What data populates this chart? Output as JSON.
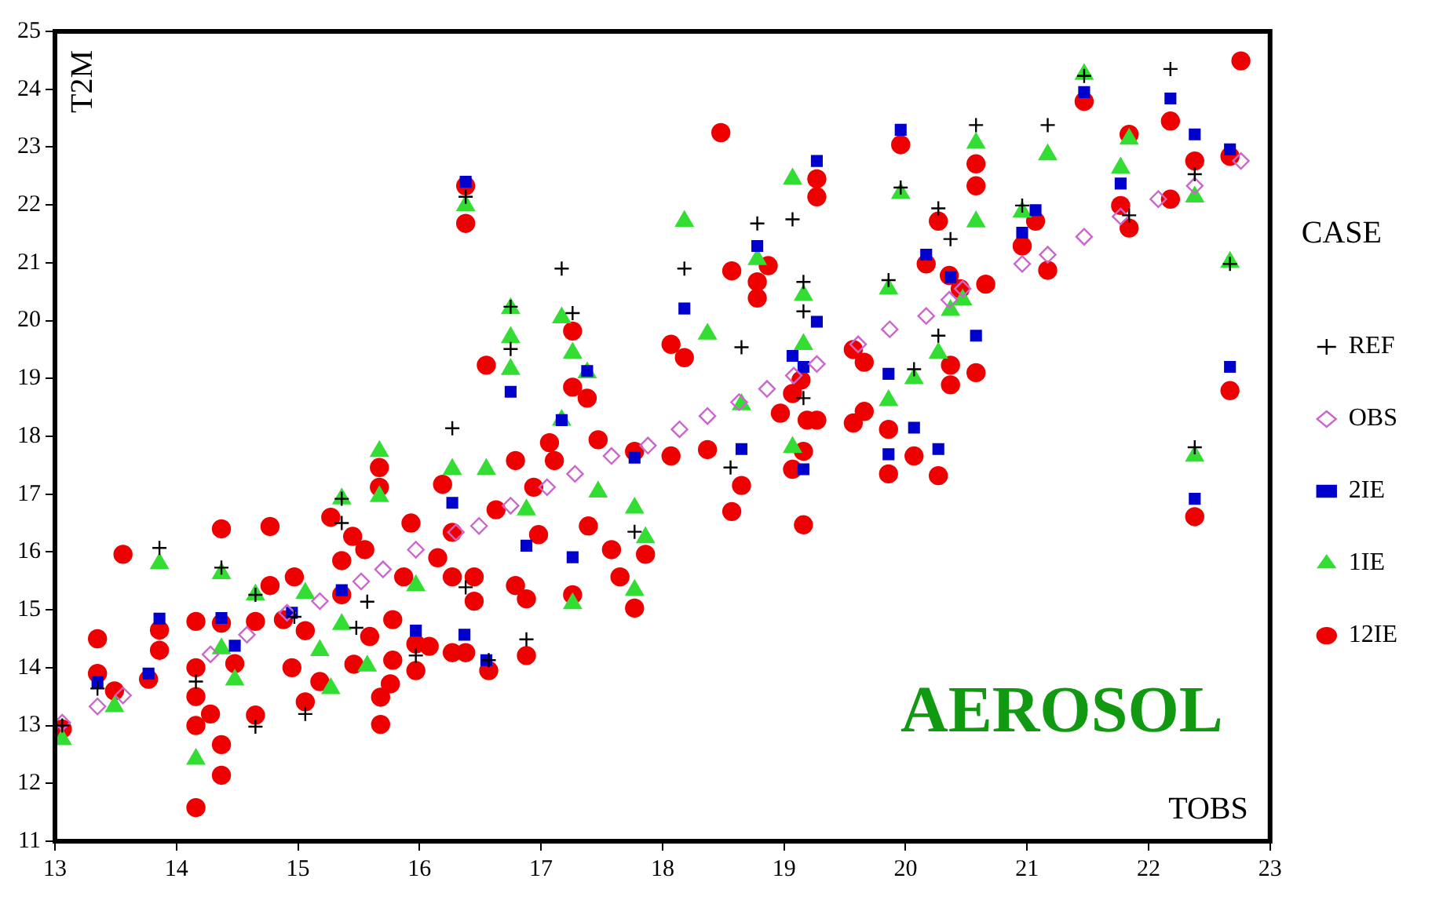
{
  "chart_data": {
    "type": "scatter",
    "xlabel": "TOBS",
    "ylabel": "T2M",
    "legend_title": "CASE",
    "legend": "right",
    "grid": false,
    "annotations": [
      "AEROSOL"
    ],
    "xlim": [
      13,
      23
    ],
    "xticks": [
      13,
      14,
      15,
      16,
      17,
      18,
      19,
      20,
      21,
      22,
      23
    ],
    "ylim": [
      11,
      25
    ],
    "yticks": [
      11,
      12,
      13,
      14,
      15,
      16,
      17,
      18,
      19,
      20,
      21,
      22,
      23,
      24,
      25
    ],
    "series": [
      {
        "name": "REF",
        "color": "#000000",
        "marker": "cross",
        "x": [
          13.06,
          13.35,
          13.86,
          14.16,
          14.37,
          14.65,
          14.65,
          14.97,
          15.06,
          15.36,
          15.36,
          15.48,
          15.57,
          15.97,
          16.27,
          16.38,
          16.38,
          16.57,
          16.75,
          16.75,
          16.88,
          17.17,
          17.26,
          17.77,
          18.18,
          18.56,
          18.65,
          18.78,
          19.07,
          19.16,
          19.16,
          19.16,
          19.86,
          19.96,
          20.07,
          20.27,
          20.27,
          20.37,
          20.58,
          20.96,
          21.17,
          21.47,
          21.84,
          22.18,
          22.38,
          22.38,
          22.67
        ],
        "values": [
          13.0,
          13.64,
          16.07,
          13.76,
          15.73,
          12.98,
          15.26,
          14.88,
          13.2,
          16.92,
          16.5,
          14.69,
          15.14,
          14.21,
          18.14,
          22.14,
          15.39,
          14.13,
          20.24,
          19.51,
          14.49,
          20.9,
          20.13,
          16.35,
          20.9,
          17.46,
          19.54,
          21.68,
          21.75,
          20.67,
          20.16,
          18.66,
          20.7,
          22.3,
          19.16,
          21.94,
          19.74,
          21.41,
          23.38,
          21.99,
          23.38,
          24.23,
          21.82,
          24.35,
          22.53,
          17.81,
          20.98
        ]
      },
      {
        "name": "OBS",
        "color": "#cc66cc",
        "marker": "diamond",
        "x": [
          13.06,
          13.35,
          13.56,
          14.28,
          14.58,
          14.91,
          15.18,
          15.52,
          15.7,
          15.97,
          16.3,
          16.49,
          16.75,
          17.05,
          17.28,
          17.58,
          17.88,
          18.14,
          18.37,
          18.63,
          18.86,
          19.08,
          19.27,
          19.61,
          19.87,
          20.17,
          20.36,
          20.47,
          20.96,
          21.17,
          21.47,
          21.77,
          22.08,
          22.38,
          22.76
        ],
        "values": [
          13.05,
          13.33,
          13.52,
          14.23,
          14.57,
          14.95,
          15.15,
          15.49,
          15.7,
          16.04,
          16.34,
          16.45,
          16.8,
          17.12,
          17.35,
          17.66,
          17.84,
          18.12,
          18.35,
          18.59,
          18.82,
          19.05,
          19.25,
          19.59,
          19.85,
          20.08,
          20.36,
          20.55,
          20.98,
          21.14,
          21.45,
          21.8,
          22.1,
          22.33,
          22.76
        ]
      },
      {
        "name": "2IE",
        "color": "#0000cc",
        "marker": "square",
        "x": [
          13.35,
          13.77,
          13.86,
          14.37,
          14.48,
          14.95,
          15.36,
          15.97,
          16.27,
          16.37,
          16.38,
          16.55,
          16.75,
          16.88,
          17.17,
          17.26,
          17.38,
          17.77,
          18.18,
          18.65,
          18.78,
          19.07,
          19.16,
          19.16,
          19.27,
          19.27,
          19.86,
          19.86,
          19.96,
          20.07,
          20.17,
          20.27,
          20.37,
          20.58,
          20.96,
          21.07,
          21.47,
          21.77,
          22.18,
          22.38,
          22.38,
          22.67,
          22.67
        ],
        "values": [
          13.75,
          13.9,
          14.85,
          14.86,
          14.38,
          14.95,
          15.34,
          14.64,
          16.85,
          14.57,
          22.4,
          14.13,
          18.77,
          16.11,
          18.28,
          15.91,
          19.13,
          17.63,
          20.21,
          17.78,
          21.29,
          19.39,
          19.2,
          17.43,
          19.98,
          22.76,
          19.08,
          17.69,
          23.3,
          18.15,
          21.14,
          17.78,
          20.75,
          19.74,
          21.52,
          21.91,
          23.95,
          22.37,
          23.84,
          23.22,
          16.92,
          22.96,
          19.2
        ]
      },
      {
        "name": "1IE",
        "color": "#33dd33",
        "marker": "triangle",
        "x": [
          13.06,
          13.49,
          13.86,
          14.16,
          14.37,
          14.37,
          14.48,
          14.65,
          15.06,
          15.18,
          15.27,
          15.36,
          15.36,
          15.57,
          15.67,
          15.67,
          15.97,
          16.27,
          16.38,
          16.55,
          16.75,
          16.75,
          16.75,
          16.88,
          17.17,
          17.17,
          17.26,
          17.26,
          17.38,
          17.47,
          17.77,
          17.77,
          17.86,
          18.18,
          18.37,
          18.65,
          18.78,
          19.07,
          19.07,
          19.16,
          19.16,
          19.86,
          19.86,
          19.96,
          20.07,
          20.27,
          20.37,
          20.47,
          20.58,
          20.58,
          20.96,
          21.17,
          21.47,
          21.77,
          21.84,
          22.38,
          22.38,
          22.67
        ],
        "values": [
          12.76,
          13.33,
          15.8,
          12.42,
          15.63,
          14.33,
          13.79,
          15.26,
          15.29,
          14.3,
          13.64,
          16.92,
          14.75,
          14.03,
          17.74,
          16.96,
          15.42,
          17.43,
          21.99,
          17.43,
          20.21,
          19.71,
          19.16,
          16.73,
          20.05,
          18.28,
          19.44,
          15.11,
          19.1,
          17.04,
          16.76,
          15.34,
          16.25,
          21.72,
          19.77,
          18.55,
          21.06,
          22.45,
          17.81,
          20.44,
          19.59,
          20.55,
          18.62,
          22.2,
          19.0,
          19.44,
          20.18,
          20.36,
          23.07,
          21.71,
          21.88,
          22.87,
          24.26,
          22.64,
          23.14,
          22.14,
          17.66,
          21.01
        ]
      },
      {
        "name": "12IE",
        "color": "#ee0000",
        "marker": "circle",
        "x": [
          13.06,
          13.35,
          13.35,
          13.49,
          13.56,
          13.77,
          13.86,
          13.86,
          14.16,
          14.16,
          14.16,
          14.16,
          14.16,
          14.28,
          14.37,
          14.37,
          14.37,
          14.37,
          14.48,
          14.65,
          14.65,
          14.77,
          14.77,
          14.88,
          14.95,
          14.97,
          15.06,
          15.06,
          15.27,
          15.18,
          15.36,
          15.36,
          15.45,
          15.46,
          15.55,
          15.59,
          15.67,
          15.67,
          15.68,
          15.68,
          15.76,
          15.78,
          15.78,
          15.87,
          15.93,
          15.97,
          15.97,
          16.08,
          16.15,
          16.19,
          16.27,
          16.27,
          16.27,
          16.38,
          16.38,
          16.38,
          16.45,
          16.45,
          16.55,
          16.57,
          16.63,
          16.79,
          16.79,
          16.88,
          16.88,
          16.94,
          16.98,
          17.07,
          17.11,
          17.26,
          17.26,
          17.26,
          17.38,
          17.39,
          17.47,
          17.58,
          17.65,
          17.77,
          17.77,
          17.86,
          18.07,
          18.07,
          18.18,
          18.37,
          18.48,
          18.57,
          18.57,
          18.65,
          18.78,
          18.78,
          18.87,
          18.97,
          19.07,
          19.07,
          19.14,
          19.16,
          19.16,
          19.19,
          19.27,
          19.27,
          19.27,
          19.57,
          19.57,
          19.66,
          19.66,
          19.86,
          19.86,
          19.96,
          20.07,
          20.17,
          20.27,
          20.27,
          20.36,
          20.37,
          20.37,
          20.45,
          20.58,
          20.58,
          20.58,
          20.66,
          20.96,
          21.07,
          21.17,
          21.47,
          21.77,
          21.84,
          21.84,
          22.18,
          22.18,
          22.38,
          22.38,
          22.67,
          22.67,
          22.76
        ],
        "values": [
          12.94,
          14.5,
          13.9,
          13.6,
          15.96,
          13.8,
          14.3,
          14.65,
          14.8,
          14.0,
          13.5,
          13.0,
          11.58,
          13.2,
          16.4,
          14.77,
          12.67,
          12.14,
          14.07,
          14.8,
          13.18,
          16.44,
          15.42,
          14.83,
          14.0,
          15.57,
          14.64,
          13.41,
          16.6,
          13.76,
          15.26,
          15.85,
          16.27,
          14.06,
          16.04,
          14.54,
          17.46,
          17.12,
          13.49,
          13.02,
          13.72,
          14.13,
          14.83,
          15.57,
          16.5,
          14.41,
          13.95,
          14.37,
          15.9,
          17.17,
          14.26,
          16.34,
          15.57,
          22.33,
          21.68,
          14.26,
          15.57,
          15.15,
          19.23,
          13.95,
          16.73,
          17.58,
          15.42,
          15.19,
          14.21,
          17.12,
          16.3,
          17.89,
          17.58,
          19.82,
          18.85,
          15.26,
          18.66,
          16.45,
          17.94,
          16.04,
          15.57,
          15.03,
          17.74,
          15.96,
          19.59,
          17.66,
          19.36,
          17.77,
          23.25,
          20.86,
          16.7,
          17.15,
          20.67,
          20.39,
          20.95,
          18.4,
          18.74,
          17.43,
          18.97,
          17.74,
          16.47,
          18.28,
          18.28,
          22.45,
          22.14,
          19.5,
          18.23,
          19.28,
          18.43,
          18.12,
          17.35,
          23.04,
          17.66,
          20.98,
          21.72,
          17.32,
          20.78,
          19.23,
          18.89,
          20.55,
          22.71,
          22.33,
          19.1,
          20.63,
          21.29,
          21.72,
          20.87,
          23.79,
          21.99,
          23.22,
          21.6,
          23.45,
          22.1,
          22.76,
          16.61,
          22.84,
          18.79,
          24.49
        ]
      }
    ]
  }
}
